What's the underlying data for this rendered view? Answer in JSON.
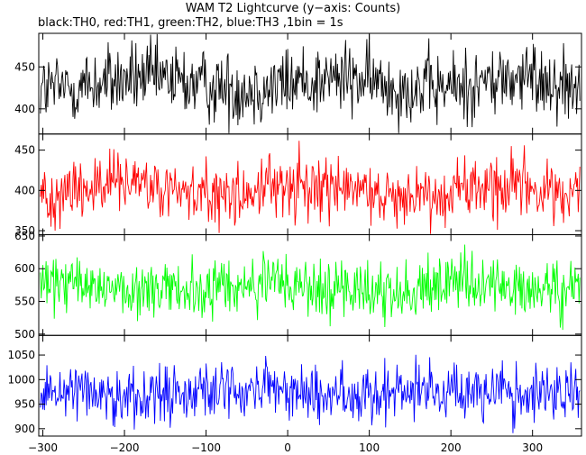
{
  "title": "WAM T2 Lightcurve (y−axis: Counts)",
  "subtitle": "black:TH0, red:TH1, green:TH2, blue:TH3 ,1bin = 1s",
  "chart_data": {
    "type": "line",
    "xlim": [
      -305,
      360
    ],
    "x_ticks": [
      -300,
      -200,
      -100,
      0,
      100,
      200,
      300
    ],
    "x_tick_labels": [
      "−300",
      "−200",
      "−100",
      "0",
      "100",
      "200",
      "300"
    ],
    "bin_seconds": 1,
    "grid": false,
    "series": [
      {
        "name": "TH0",
        "color": "#000000",
        "ylim": [
          370,
          490
        ],
        "yticks": [
          400,
          450
        ],
        "ytick_labels": [
          "400",
          "450"
        ],
        "mean": 430,
        "spread": 22
      },
      {
        "name": "TH1",
        "color": "#ff0000",
        "ylim": [
          345,
          470
        ],
        "yticks": [
          350,
          400,
          450
        ],
        "ytick_labels": [
          "350",
          "400",
          "450"
        ],
        "mean": 400,
        "spread": 20
      },
      {
        "name": "TH2",
        "color": "#00ff00",
        "ylim": [
          498,
          652
        ],
        "yticks": [
          500,
          550,
          600,
          650
        ],
        "ytick_labels": [
          "500",
          "550",
          "600",
          "650"
        ],
        "mean": 570,
        "spread": 23
      },
      {
        "name": "TH3",
        "color": "#0000ff",
        "ylim": [
          885,
          1090
        ],
        "yticks": [
          900,
          950,
          1000,
          1050
        ],
        "ytick_labels": [
          "900",
          "950",
          "1000",
          "1050"
        ],
        "mean": 975,
        "spread": 30
      }
    ]
  }
}
